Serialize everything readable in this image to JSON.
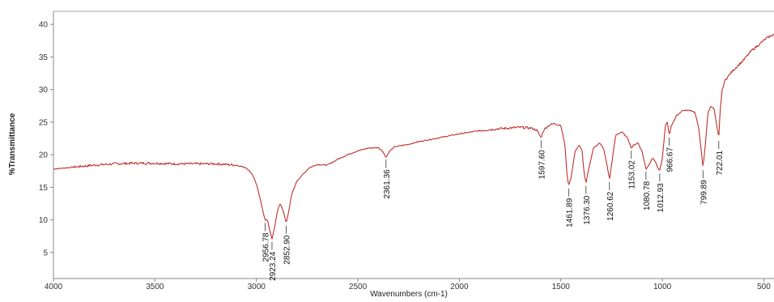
{
  "chart_data": {
    "type": "line",
    "title": "",
    "xlabel": "Wavenumbers (cm-1)",
    "ylabel": "%Transmittance",
    "xlim": [
      4000,
      450
    ],
    "ylim": [
      1,
      42
    ],
    "x_reversed": true,
    "grid": false,
    "line_color": "#c0302b",
    "xticks": [
      4000,
      3500,
      3000,
      2500,
      2000,
      1500,
      1000,
      500
    ],
    "yticks": [
      5,
      10,
      15,
      20,
      25,
      30,
      35,
      40
    ],
    "series": [
      {
        "points": [
          [
            4000,
            17.8
          ],
          [
            3900,
            18.1
          ],
          [
            3800,
            18.4
          ],
          [
            3700,
            18.6
          ],
          [
            3600,
            18.7
          ],
          [
            3500,
            18.7
          ],
          [
            3400,
            18.6
          ],
          [
            3300,
            18.6
          ],
          [
            3200,
            18.6
          ],
          [
            3100,
            18.4
          ],
          [
            3050,
            18.0
          ],
          [
            3020,
            17.0
          ],
          [
            3000,
            15.5
          ],
          [
            2980,
            13.0
          ],
          [
            2965,
            11.0
          ],
          [
            2956.78,
            9.9
          ],
          [
            2945,
            10.0
          ],
          [
            2935,
            8.5
          ],
          [
            2923.24,
            7.0
          ],
          [
            2910,
            9.0
          ],
          [
            2895,
            11.5
          ],
          [
            2885,
            12.5
          ],
          [
            2875,
            12.0
          ],
          [
            2865,
            11.0
          ],
          [
            2852.9,
            9.5
          ],
          [
            2840,
            11.5
          ],
          [
            2825,
            14.0
          ],
          [
            2800,
            16.0
          ],
          [
            2770,
            17.0
          ],
          [
            2740,
            18.0
          ],
          [
            2700,
            18.5
          ],
          [
            2650,
            18.4
          ],
          [
            2600,
            19.3
          ],
          [
            2550,
            20.0
          ],
          [
            2500,
            20.6
          ],
          [
            2450,
            21.0
          ],
          [
            2400,
            21.1
          ],
          [
            2380,
            20.6
          ],
          [
            2361.36,
            19.6
          ],
          [
            2345,
            20.5
          ],
          [
            2320,
            21.2
          ],
          [
            2250,
            21.6
          ],
          [
            2200,
            22.0
          ],
          [
            2100,
            22.6
          ],
          [
            2000,
            23.2
          ],
          [
            1900,
            23.7
          ],
          [
            1800,
            24.0
          ],
          [
            1700,
            24.2
          ],
          [
            1650,
            24.1
          ],
          [
            1620,
            23.8
          ],
          [
            1597.6,
            22.6
          ],
          [
            1585,
            23.8
          ],
          [
            1560,
            24.5
          ],
          [
            1530,
            24.8
          ],
          [
            1500,
            24.5
          ],
          [
            1480,
            21.5
          ],
          [
            1470,
            17.0
          ],
          [
            1461.89,
            15.2
          ],
          [
            1450,
            16.5
          ],
          [
            1430,
            20.5
          ],
          [
            1410,
            21.5
          ],
          [
            1395,
            20.5
          ],
          [
            1385,
            17.0
          ],
          [
            1376.3,
            15.6
          ],
          [
            1365,
            17.5
          ],
          [
            1340,
            21.0
          ],
          [
            1310,
            21.8
          ],
          [
            1290,
            21.0
          ],
          [
            1270,
            18.0
          ],
          [
            1260.62,
            16.2
          ],
          [
            1250,
            18.5
          ],
          [
            1230,
            23.0
          ],
          [
            1200,
            23.5
          ],
          [
            1170,
            22.5
          ],
          [
            1153.02,
            21.0
          ],
          [
            1140,
            21.5
          ],
          [
            1120,
            21.8
          ],
          [
            1100,
            20.5
          ],
          [
            1080.78,
            17.8
          ],
          [
            1065,
            18.5
          ],
          [
            1050,
            19.5
          ],
          [
            1035,
            19.0
          ],
          [
            1020,
            17.8
          ],
          [
            1012.93,
            17.5
          ],
          [
            1000,
            19.5
          ],
          [
            985,
            24.5
          ],
          [
            975,
            25.0
          ],
          [
            966.67,
            23.0
          ],
          [
            955,
            24.5
          ],
          [
            930,
            26.0
          ],
          [
            900,
            26.8
          ],
          [
            860,
            26.8
          ],
          [
            840,
            26.5
          ],
          [
            820,
            24.0
          ],
          [
            810,
            21.0
          ],
          [
            799.89,
            18.0
          ],
          [
            790,
            21.0
          ],
          [
            775,
            26.5
          ],
          [
            760,
            27.5
          ],
          [
            745,
            27.0
          ],
          [
            735,
            25.0
          ],
          [
            722.01,
            22.5
          ],
          [
            715,
            27.0
          ],
          [
            705,
            30.0
          ],
          [
            690,
            31.5
          ],
          [
            650,
            33.0
          ],
          [
            600,
            34.5
          ],
          [
            560,
            36.0
          ],
          [
            520,
            37.0
          ],
          [
            490,
            37.8
          ],
          [
            450,
            38.5
          ]
        ]
      }
    ],
    "annotations": [
      {
        "label": "2956.78",
        "x": 2956.78,
        "y": 9.9
      },
      {
        "label": "2923.24",
        "x": 2923.24,
        "y": 7.0
      },
      {
        "label": "2852.90",
        "x": 2852.9,
        "y": 9.5
      },
      {
        "label": "2361.36",
        "x": 2361.36,
        "y": 19.6
      },
      {
        "label": "1597.60",
        "x": 1597.6,
        "y": 22.6
      },
      {
        "label": "1461.89",
        "x": 1461.89,
        "y": 15.2
      },
      {
        "label": "1376.30",
        "x": 1376.3,
        "y": 15.6
      },
      {
        "label": "1260.62",
        "x": 1260.62,
        "y": 16.2
      },
      {
        "label": "1153.02",
        "x": 1153.02,
        "y": 21.0
      },
      {
        "label": "1080.78",
        "x": 1080.78,
        "y": 17.8
      },
      {
        "label": "1012.93",
        "x": 1012.93,
        "y": 17.5
      },
      {
        "label": "966.67",
        "x": 966.67,
        "y": 23.0
      },
      {
        "label": "799.89",
        "x": 799.89,
        "y": 18.0
      },
      {
        "label": "722.01",
        "x": 722.01,
        "y": 22.5
      }
    ]
  }
}
